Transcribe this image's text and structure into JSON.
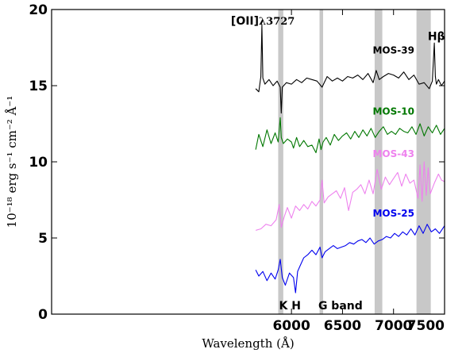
{
  "chart_data": {
    "type": "line",
    "title": "",
    "xlabel": "Wavelength (Å)",
    "ylabel": "10⁻¹⁸ erg s⁻¹ cm⁻² Å⁻¹",
    "xlim": [
      3650,
      7500
    ],
    "ylim": [
      0,
      20
    ],
    "xticks": [
      6000,
      6500,
      7000,
      7500
    ],
    "yticks": [
      0,
      5,
      10,
      15,
      20
    ],
    "shaded_bands": [
      {
        "x0": 5870,
        "x1": 5920
      },
      {
        "x0": 6275,
        "x1": 6310
      },
      {
        "x0": 6815,
        "x1": 6890
      },
      {
        "x0": 7225,
        "x1": 7365
      }
    ],
    "annotations": [
      {
        "text_bold": "[OII]",
        "text": "λ3727",
        "x": 5720,
        "y": 19.0
      },
      {
        "text": "Hβ",
        "x": 7420,
        "y": 18.0
      },
      {
        "text": "K H",
        "x": 5985,
        "y": 0.3
      },
      {
        "text": "G band",
        "x": 6480,
        "y": 0.3
      }
    ],
    "series": [
      {
        "name": "MOS-39",
        "color": "#000000",
        "label_pos": [
          7000,
          17.1
        ],
        "x": [
          5650,
          5680,
          5700,
          5710,
          5720,
          5740,
          5780,
          5820,
          5860,
          5890,
          5900,
          5910,
          5950,
          6000,
          6050,
          6100,
          6150,
          6200,
          6250,
          6300,
          6350,
          6400,
          6450,
          6500,
          6550,
          6600,
          6650,
          6700,
          6750,
          6800,
          6830,
          6860,
          6900,
          6950,
          7000,
          7050,
          7100,
          7150,
          7200,
          7250,
          7300,
          7350,
          7380,
          7400,
          7410,
          7420,
          7440,
          7470,
          7500
        ],
        "y": [
          14.8,
          14.6,
          15.6,
          19.0,
          15.5,
          15.1,
          15.4,
          15.0,
          15.3,
          14.9,
          13.2,
          14.9,
          15.2,
          15.1,
          15.4,
          15.2,
          15.5,
          15.4,
          15.3,
          14.9,
          15.6,
          15.3,
          15.5,
          15.3,
          15.6,
          15.5,
          15.7,
          15.4,
          15.8,
          15.2,
          16.0,
          15.4,
          15.6,
          15.8,
          15.7,
          15.5,
          15.9,
          15.4,
          15.7,
          15.1,
          15.2,
          14.8,
          15.3,
          17.8,
          15.6,
          15.1,
          15.4,
          15.0,
          15.3
        ]
      },
      {
        "name": "MOS-10",
        "color": "#007700",
        "label_pos": [
          7000,
          13.1
        ],
        "x": [
          5650,
          5680,
          5720,
          5760,
          5800,
          5840,
          5870,
          5890,
          5900,
          5920,
          5960,
          6000,
          6020,
          6050,
          6080,
          6120,
          6160,
          6200,
          6240,
          6270,
          6290,
          6310,
          6340,
          6380,
          6420,
          6460,
          6500,
          6540,
          6580,
          6620,
          6660,
          6700,
          6740,
          6780,
          6820,
          6860,
          6900,
          6940,
          6980,
          7020,
          7060,
          7100,
          7140,
          7180,
          7220,
          7260,
          7300,
          7340,
          7380,
          7420,
          7460,
          7500
        ],
        "y": [
          10.8,
          11.8,
          11.0,
          12.1,
          11.2,
          11.9,
          11.3,
          12.9,
          11.6,
          11.2,
          11.5,
          11.3,
          10.9,
          11.6,
          11.0,
          11.4,
          11.0,
          11.1,
          10.6,
          11.5,
          10.8,
          11.3,
          11.6,
          11.1,
          11.8,
          11.4,
          11.7,
          11.9,
          11.5,
          12.0,
          11.6,
          12.1,
          11.7,
          12.2,
          11.6,
          12.0,
          12.3,
          11.8,
          12.0,
          11.8,
          12.2,
          12.0,
          11.9,
          12.3,
          11.8,
          12.5,
          11.7,
          12.3,
          11.9,
          12.4,
          11.8,
          12.2
        ]
      },
      {
        "name": "MOS-43",
        "color": "#ee82ee",
        "label_pos": [
          7000,
          10.3
        ],
        "x": [
          5650,
          5700,
          5750,
          5800,
          5850,
          5880,
          5900,
          5930,
          5960,
          6000,
          6040,
          6080,
          6120,
          6160,
          6200,
          6240,
          6280,
          6300,
          6320,
          6360,
          6400,
          6440,
          6480,
          6520,
          6560,
          6600,
          6640,
          6680,
          6720,
          6760,
          6800,
          6840,
          6880,
          6920,
          6960,
          7000,
          7040,
          7080,
          7120,
          7160,
          7200,
          7240,
          7260,
          7280,
          7300,
          7320,
          7340,
          7360,
          7400,
          7440,
          7470,
          7500
        ],
        "y": [
          5.5,
          5.6,
          5.9,
          5.8,
          6.2,
          7.2,
          5.7,
          6.4,
          7.0,
          6.3,
          7.1,
          6.8,
          7.2,
          6.9,
          7.4,
          7.1,
          7.5,
          8.8,
          7.3,
          7.7,
          7.9,
          8.1,
          7.6,
          8.3,
          6.8,
          8.0,
          8.2,
          8.5,
          7.9,
          8.8,
          7.9,
          9.5,
          8.2,
          9.0,
          8.5,
          8.9,
          9.3,
          8.4,
          9.2,
          8.6,
          8.8,
          7.6,
          9.8,
          7.4,
          10.0,
          7.8,
          9.6,
          7.9,
          8.6,
          9.2,
          8.8,
          8.7
        ]
      },
      {
        "name": "MOS-25",
        "color": "#0000ee",
        "label_pos": [
          7000,
          6.4
        ],
        "x": [
          5650,
          5680,
          5720,
          5760,
          5800,
          5840,
          5870,
          5890,
          5910,
          5940,
          5980,
          6020,
          6040,
          6060,
          6080,
          6120,
          6160,
          6200,
          6240,
          6280,
          6300,
          6330,
          6370,
          6410,
          6450,
          6490,
          6530,
          6570,
          6610,
          6650,
          6690,
          6730,
          6770,
          6810,
          6850,
          6890,
          6930,
          6970,
          7010,
          7050,
          7090,
          7130,
          7170,
          7210,
          7250,
          7290,
          7330,
          7370,
          7410,
          7450,
          7500
        ],
        "y": [
          2.9,
          2.5,
          2.8,
          2.2,
          2.7,
          2.3,
          2.9,
          3.6,
          2.4,
          1.9,
          2.7,
          2.4,
          1.4,
          2.8,
          3.1,
          3.7,
          3.9,
          4.2,
          3.9,
          4.4,
          3.7,
          4.1,
          4.3,
          4.5,
          4.3,
          4.4,
          4.5,
          4.7,
          4.6,
          4.8,
          4.9,
          4.7,
          5.0,
          4.6,
          4.8,
          4.9,
          5.1,
          5.0,
          5.3,
          5.1,
          5.4,
          5.2,
          5.6,
          5.2,
          5.8,
          5.3,
          5.9,
          5.4,
          5.6,
          5.3,
          5.8
        ]
      }
    ]
  }
}
